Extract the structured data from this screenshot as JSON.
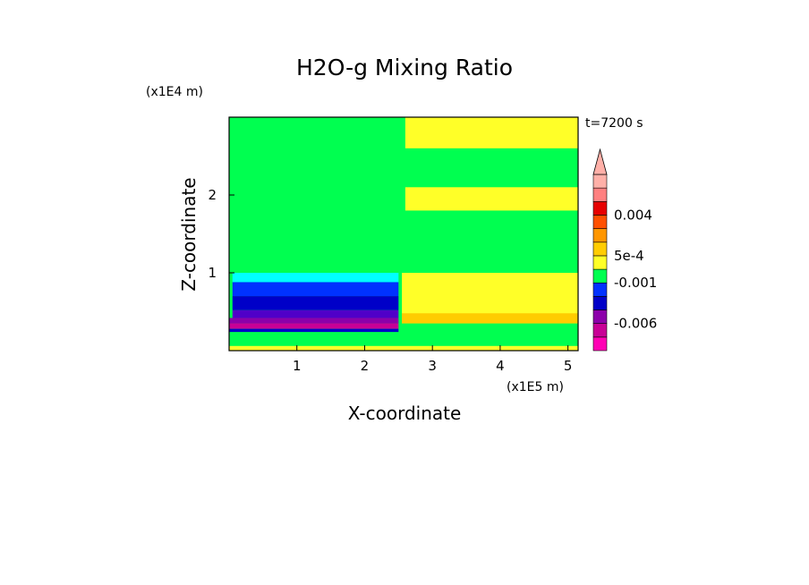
{
  "chart_data": {
    "type": "heatmap",
    "title": "H2O-g Mixing Ratio",
    "xlabel": "X-coordinate",
    "ylabel": "Z-coordinate",
    "x_scale_label": "(x1E5 m)",
    "y_scale_label": "(x1E4 m)",
    "time_label": "t=7200 s",
    "xlim": [
      0,
      5.15
    ],
    "ylim": [
      0,
      3.0
    ],
    "x_ticks": [
      1,
      2,
      3,
      4,
      5
    ],
    "y_ticks": [
      1,
      2
    ],
    "colorbar": {
      "labels": [
        {
          "text": "0.004",
          "level": 0.004
        },
        {
          "text": "5e-4",
          "level": 0.0005
        },
        {
          "text": "-0.001",
          "level": -0.001
        },
        {
          "text": "-0.006",
          "level": -0.006
        }
      ],
      "colors": [
        "#ff00b4",
        "#c80096",
        "#8c00aa",
        "#0000c8",
        "#0032ff",
        "#00ff50",
        "#ffff28",
        "#ffcc00",
        "#ff9600",
        "#ff5000",
        "#e60000",
        "#ff8080",
        "#ffb0a8"
      ]
    },
    "regions": [
      {
        "color": "#00ff50",
        "x": [
          0,
          5.15
        ],
        "z": [
          0,
          3.0
        ]
      },
      {
        "color": "#00ffff",
        "x": [
          0.05,
          2.5
        ],
        "z": [
          0.88,
          1.0
        ]
      },
      {
        "color": "#0032ff",
        "x": [
          0.05,
          2.5
        ],
        "z": [
          0.7,
          0.88
        ]
      },
      {
        "color": "#0000c8",
        "x": [
          0.05,
          2.5
        ],
        "z": [
          0.52,
          0.7
        ]
      },
      {
        "color": "#5000c8",
        "x": [
          0.05,
          2.5
        ],
        "z": [
          0.42,
          0.52
        ]
      },
      {
        "color": "#8c00aa",
        "x": [
          0.0,
          2.5
        ],
        "z": [
          0.35,
          0.42
        ]
      },
      {
        "color": "#c80096",
        "x": [
          0.0,
          2.5
        ],
        "z": [
          0.28,
          0.35
        ]
      },
      {
        "color": "#0000c8",
        "x": [
          0.0,
          2.5
        ],
        "z": [
          0.24,
          0.28
        ]
      },
      {
        "color": "#ffff28",
        "x": [
          2.55,
          5.15
        ],
        "z": [
          0.35,
          1.0
        ]
      },
      {
        "color": "#ffcc00",
        "x": [
          2.55,
          5.15
        ],
        "z": [
          0.35,
          0.48
        ]
      },
      {
        "color": "#ffff28",
        "x": [
          2.6,
          5.15
        ],
        "z": [
          1.8,
          2.1
        ]
      },
      {
        "color": "#ffff28",
        "x": [
          2.6,
          5.15
        ],
        "z": [
          2.6,
          3.0
        ]
      },
      {
        "color": "#ffff28",
        "x": [
          0.0,
          5.15
        ],
        "z": [
          0.0,
          0.06
        ]
      }
    ]
  }
}
